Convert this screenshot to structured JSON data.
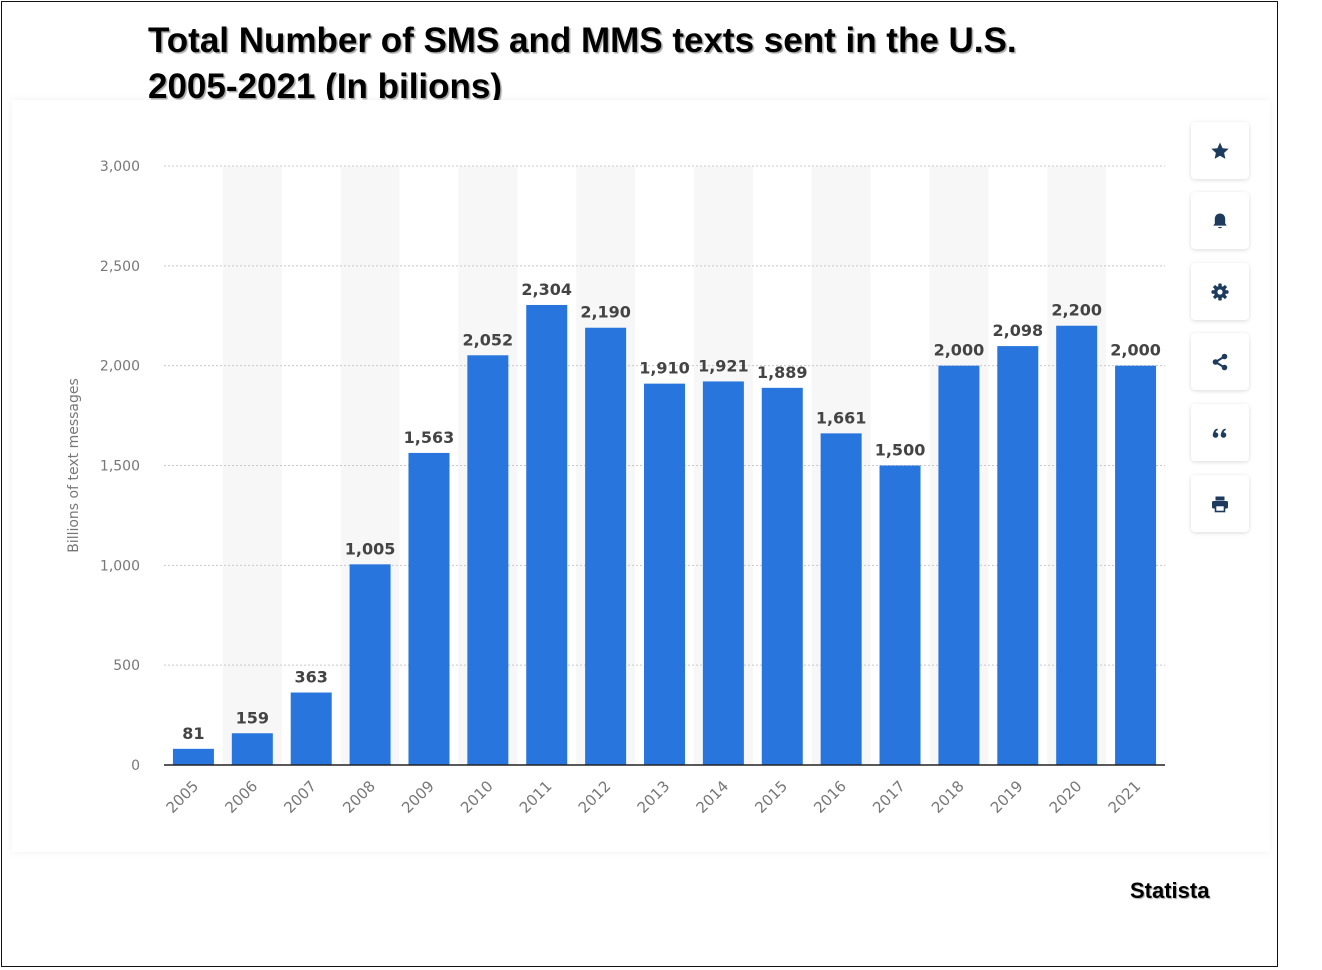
{
  "header": {
    "title_line1": "Total Number of SMS and MMS texts sent in the U.S.",
    "title_line2": "2005-2021 (In bilions)"
  },
  "source_label": "Statista",
  "toolbar": {
    "buttons": [
      {
        "icon": "star-icon",
        "name": "favorite-button"
      },
      {
        "icon": "bell-icon",
        "name": "notification-button"
      },
      {
        "icon": "gear-icon",
        "name": "settings-button"
      },
      {
        "icon": "share-icon",
        "name": "share-button"
      },
      {
        "icon": "quote-icon",
        "name": "cite-button"
      },
      {
        "icon": "print-icon",
        "name": "print-button"
      }
    ]
  },
  "colors": {
    "bar": "#2876dd",
    "band": "#f7f7f7",
    "grid": "#c8c8c8",
    "tick_text": "#777777",
    "value_text": "#444444",
    "icon": "#1d3b5c"
  },
  "chart_data": {
    "type": "bar",
    "title": "Total Number of SMS and MMS texts sent in the U.S. 2005-2021 (In bilions)",
    "xlabel": "",
    "ylabel": "Billions of text messages",
    "categories": [
      "2005",
      "2006",
      "2007",
      "2008",
      "2009",
      "2010",
      "2011",
      "2012",
      "2013",
      "2014",
      "2015",
      "2016",
      "2017",
      "2018",
      "2019",
      "2020",
      "2021"
    ],
    "values": [
      81,
      159,
      363,
      1005,
      1563,
      2052,
      2304,
      2190,
      1910,
      1921,
      1889,
      1661,
      1500,
      2000,
      2098,
      2200,
      2000
    ],
    "value_labels": [
      "81",
      "159",
      "363",
      "1,005",
      "1,563",
      "2,052",
      "2,304",
      "2,190",
      "1,910",
      "1,921",
      "1,889",
      "1,661",
      "1,500",
      "2,000",
      "2,098",
      "2,200",
      "2,000"
    ],
    "ylim": [
      0,
      3000
    ],
    "yticks": [
      0,
      500,
      1000,
      1500,
      2000,
      2500,
      3000
    ],
    "ytick_labels": [
      "0",
      "500",
      "1,000",
      "1,500",
      "2,000",
      "2,500",
      "3,000"
    ],
    "grid": true,
    "legend": "none"
  }
}
